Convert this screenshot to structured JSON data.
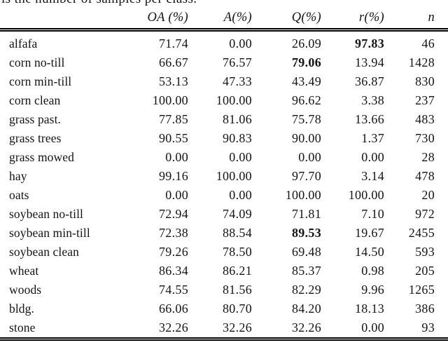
{
  "caption": "is the number of samples per class.",
  "table": {
    "columns": [
      "",
      "OA (%)",
      "A(%)",
      "Q(%)",
      "r(%)",
      "n"
    ],
    "rows": [
      {
        "label": "alfafa",
        "values": [
          "71.74",
          "0.00",
          "26.09",
          "97.83",
          "46"
        ],
        "bold": [
          3
        ]
      },
      {
        "label": "corn no-till",
        "values": [
          "66.67",
          "76.57",
          "79.06",
          "13.94",
          "1428"
        ],
        "bold": [
          2
        ]
      },
      {
        "label": "corn min-till",
        "values": [
          "53.13",
          "47.33",
          "43.49",
          "36.87",
          "830"
        ],
        "bold": []
      },
      {
        "label": "corn clean",
        "values": [
          "100.00",
          "100.00",
          "96.62",
          "3.38",
          "237"
        ],
        "bold": []
      },
      {
        "label": "grass past.",
        "values": [
          "77.85",
          "81.06",
          "75.78",
          "13.66",
          "483"
        ],
        "bold": []
      },
      {
        "label": "grass trees",
        "values": [
          "90.55",
          "90.83",
          "90.00",
          "1.37",
          "730"
        ],
        "bold": []
      },
      {
        "label": "grass mowed",
        "values": [
          "0.00",
          "0.00",
          "0.00",
          "0.00",
          "28"
        ],
        "bold": []
      },
      {
        "label": "hay",
        "values": [
          "99.16",
          "100.00",
          "97.70",
          "3.14",
          "478"
        ],
        "bold": []
      },
      {
        "label": "oats",
        "values": [
          "0.00",
          "0.00",
          "100.00",
          "100.00",
          "20"
        ],
        "bold": []
      },
      {
        "label": "soybean no-till",
        "values": [
          "72.94",
          "74.09",
          "71.81",
          "7.10",
          "972"
        ],
        "bold": []
      },
      {
        "label": "soybean min-till",
        "values": [
          "72.38",
          "88.54",
          "89.53",
          "19.67",
          "2455"
        ],
        "bold": [
          2
        ]
      },
      {
        "label": "soybean clean",
        "values": [
          "79.26",
          "78.50",
          "69.48",
          "14.50",
          "593"
        ],
        "bold": []
      },
      {
        "label": "wheat",
        "values": [
          "86.34",
          "86.21",
          "85.37",
          "0.98",
          "205"
        ],
        "bold": []
      },
      {
        "label": "woods",
        "values": [
          "74.55",
          "81.56",
          "82.29",
          "9.96",
          "1265"
        ],
        "bold": []
      },
      {
        "label": "bldg.",
        "values": [
          "66.06",
          "80.70",
          "84.20",
          "18.13",
          "386"
        ],
        "bold": []
      },
      {
        "label": "stone",
        "values": [
          "32.26",
          "32.26",
          "32.26",
          "0.00",
          "93"
        ],
        "bold": []
      }
    ]
  }
}
